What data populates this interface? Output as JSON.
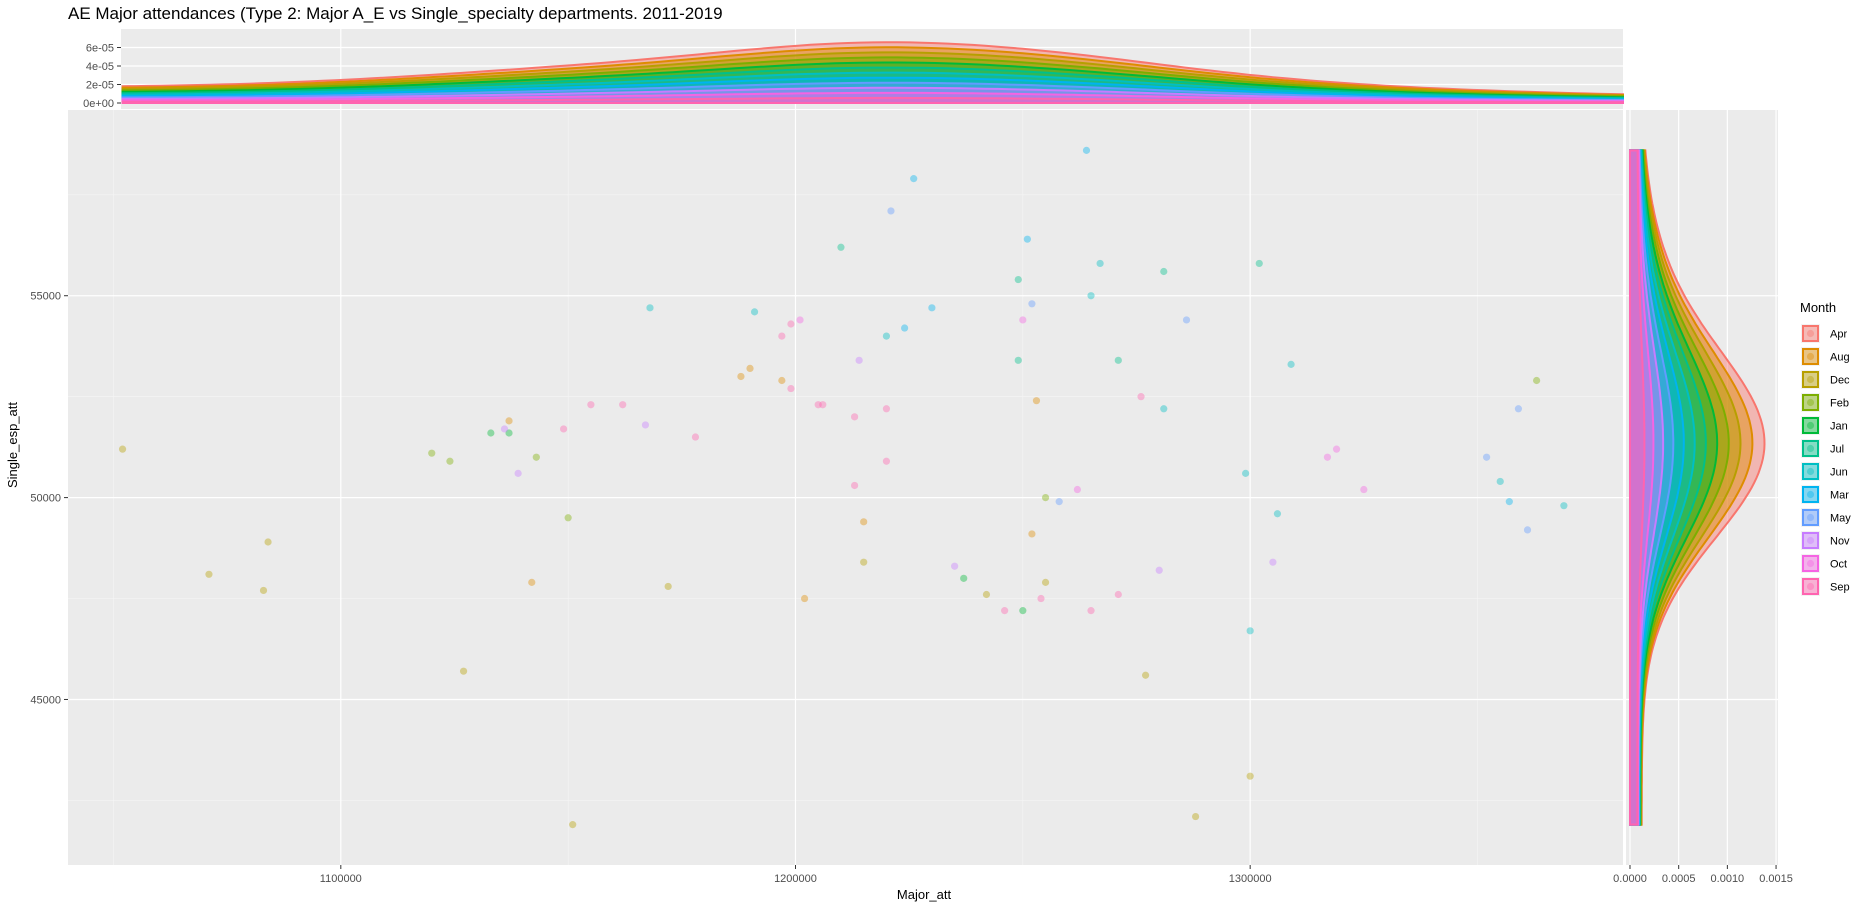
{
  "chart_data": {
    "type": "scatter",
    "title": "AE Major attendances (Type 2: Major A_E vs Single_specialty departments. 2011-2019",
    "xlabel": "Major_att",
    "ylabel": "Single_esp_att",
    "xlim": [
      1040000,
      1382000
    ],
    "ylim": [
      40900,
      59600
    ],
    "x_ticks": [
      1100000,
      1200000,
      1300000
    ],
    "y_ticks": [
      45000,
      50000,
      55000
    ],
    "x_tick_labels": [
      "1100000",
      "1200000",
      "1300000"
    ],
    "y_tick_labels": [
      "45000",
      "50000",
      "55000"
    ],
    "grid": true,
    "legend": {
      "title": "Month",
      "placement": "right",
      "entries": [
        "Apr",
        "Aug",
        "Dec",
        "Feb",
        "Jan",
        "Jul",
        "Jun",
        "Mar",
        "May",
        "Nov",
        "Oct",
        "Sep"
      ]
    },
    "colors": {
      "Apr": "#F8766D",
      "Aug": "#DE8C00",
      "Dec": "#B79F00",
      "Feb": "#7CAE00",
      "Jan": "#00BA38",
      "Jul": "#00C08B",
      "Jun": "#00BFC4",
      "Mar": "#00B4F0",
      "May": "#619CFF",
      "Nov": "#C77CFF",
      "Oct": "#F564E3",
      "Sep": "#FF64B0"
    },
    "series": [
      {
        "name": "Dec",
        "points": [
          [
            1052000,
            51200
          ],
          [
            1071000,
            48100
          ],
          [
            1084000,
            48900
          ],
          [
            1083000,
            47700
          ],
          [
            1127000,
            45700
          ],
          [
            1151000,
            41900
          ],
          [
            1172000,
            47800
          ],
          [
            1215000,
            48400
          ],
          [
            1242000,
            47600
          ],
          [
            1255000,
            47900
          ],
          [
            1288000,
            42100
          ],
          [
            1300000,
            43100
          ],
          [
            1277000,
            45600
          ]
        ]
      },
      {
        "name": "Feb",
        "points": [
          [
            1120000,
            51100
          ],
          [
            1124000,
            50900
          ],
          [
            1143000,
            51000
          ],
          [
            1150000,
            49500
          ],
          [
            1255000,
            50000
          ],
          [
            1363000,
            52900
          ]
        ]
      },
      {
        "name": "Jan",
        "points": [
          [
            1133000,
            51600
          ],
          [
            1137000,
            51600
          ],
          [
            1237000,
            48000
          ],
          [
            1250000,
            47200
          ]
        ]
      },
      {
        "name": "Jul",
        "points": [
          [
            1210000,
            56200
          ],
          [
            1249000,
            55400
          ],
          [
            1249000,
            53400
          ],
          [
            1271000,
            53400
          ],
          [
            1281000,
            55600
          ],
          [
            1302000,
            55800
          ]
        ]
      },
      {
        "name": "Jun",
        "points": [
          [
            1168000,
            54700
          ],
          [
            1191000,
            54600
          ],
          [
            1220000,
            54000
          ],
          [
            1267000,
            55800
          ],
          [
            1265000,
            55000
          ],
          [
            1281000,
            52200
          ],
          [
            1299000,
            50600
          ],
          [
            1306000,
            49600
          ],
          [
            1355000,
            50400
          ],
          [
            1369000,
            49800
          ],
          [
            1300000,
            46700
          ],
          [
            1309000,
            53300
          ]
        ]
      },
      {
        "name": "Mar",
        "points": [
          [
            1226000,
            57900
          ],
          [
            1224000,
            54200
          ],
          [
            1251000,
            56400
          ],
          [
            1264000,
            58600
          ],
          [
            1230000,
            54700
          ],
          [
            1357000,
            49900
          ]
        ]
      },
      {
        "name": "May",
        "points": [
          [
            1221000,
            57100
          ],
          [
            1252000,
            54800
          ],
          [
            1286000,
            54400
          ],
          [
            1359000,
            52200
          ],
          [
            1361000,
            49200
          ],
          [
            1352000,
            51000
          ],
          [
            1258000,
            49900
          ]
        ]
      },
      {
        "name": "Nov",
        "points": [
          [
            1136000,
            51700
          ],
          [
            1139000,
            50600
          ],
          [
            1167000,
            51800
          ],
          [
            1214000,
            53400
          ],
          [
            1235000,
            48300
          ],
          [
            1280000,
            48200
          ],
          [
            1305000,
            48400
          ]
        ]
      },
      {
        "name": "Oct",
        "points": [
          [
            1201000,
            54400
          ],
          [
            1250000,
            54400
          ],
          [
            1262000,
            50200
          ],
          [
            1317000,
            51000
          ],
          [
            1319000,
            51200
          ],
          [
            1325000,
            50200
          ]
        ]
      },
      {
        "name": "Sep",
        "points": [
          [
            1149000,
            51700
          ],
          [
            1155000,
            52300
          ],
          [
            1162000,
            52300
          ],
          [
            1178000,
            51500
          ],
          [
            1197000,
            54000
          ],
          [
            1199000,
            54300
          ],
          [
            1199000,
            52700
          ],
          [
            1205000,
            52300
          ],
          [
            1206000,
            52300
          ],
          [
            1213000,
            52000
          ],
          [
            1213000,
            50300
          ],
          [
            1220000,
            52200
          ],
          [
            1220000,
            50900
          ],
          [
            1246000,
            47200
          ],
          [
            1254000,
            47500
          ],
          [
            1265000,
            47200
          ],
          [
            1271000,
            47600
          ],
          [
            1276000,
            52500
          ]
        ]
      },
      {
        "name": "Aug",
        "points": [
          [
            1137000,
            51900
          ],
          [
            1188000,
            53000
          ],
          [
            1190000,
            53200
          ],
          [
            1197000,
            52900
          ],
          [
            1202000,
            47500
          ],
          [
            1215000,
            49400
          ],
          [
            1253000,
            52400
          ],
          [
            1252000,
            49100
          ],
          [
            1142000,
            47900
          ]
        ]
      }
    ],
    "top_density": {
      "ylabel_ticks": [
        "0e+00",
        "2e-05",
        "4e-05",
        "6e-05"
      ],
      "ylim": [
        0,
        6.6e-05
      ]
    },
    "right_density": {
      "x_ticks": [
        0,
        0.0005,
        0.001,
        0.0015
      ],
      "x_tick_labels": [
        "0.0000",
        "0.0005",
        "0.0010",
        "0.0015"
      ],
      "xlim": [
        0,
        0.00152
      ]
    }
  }
}
